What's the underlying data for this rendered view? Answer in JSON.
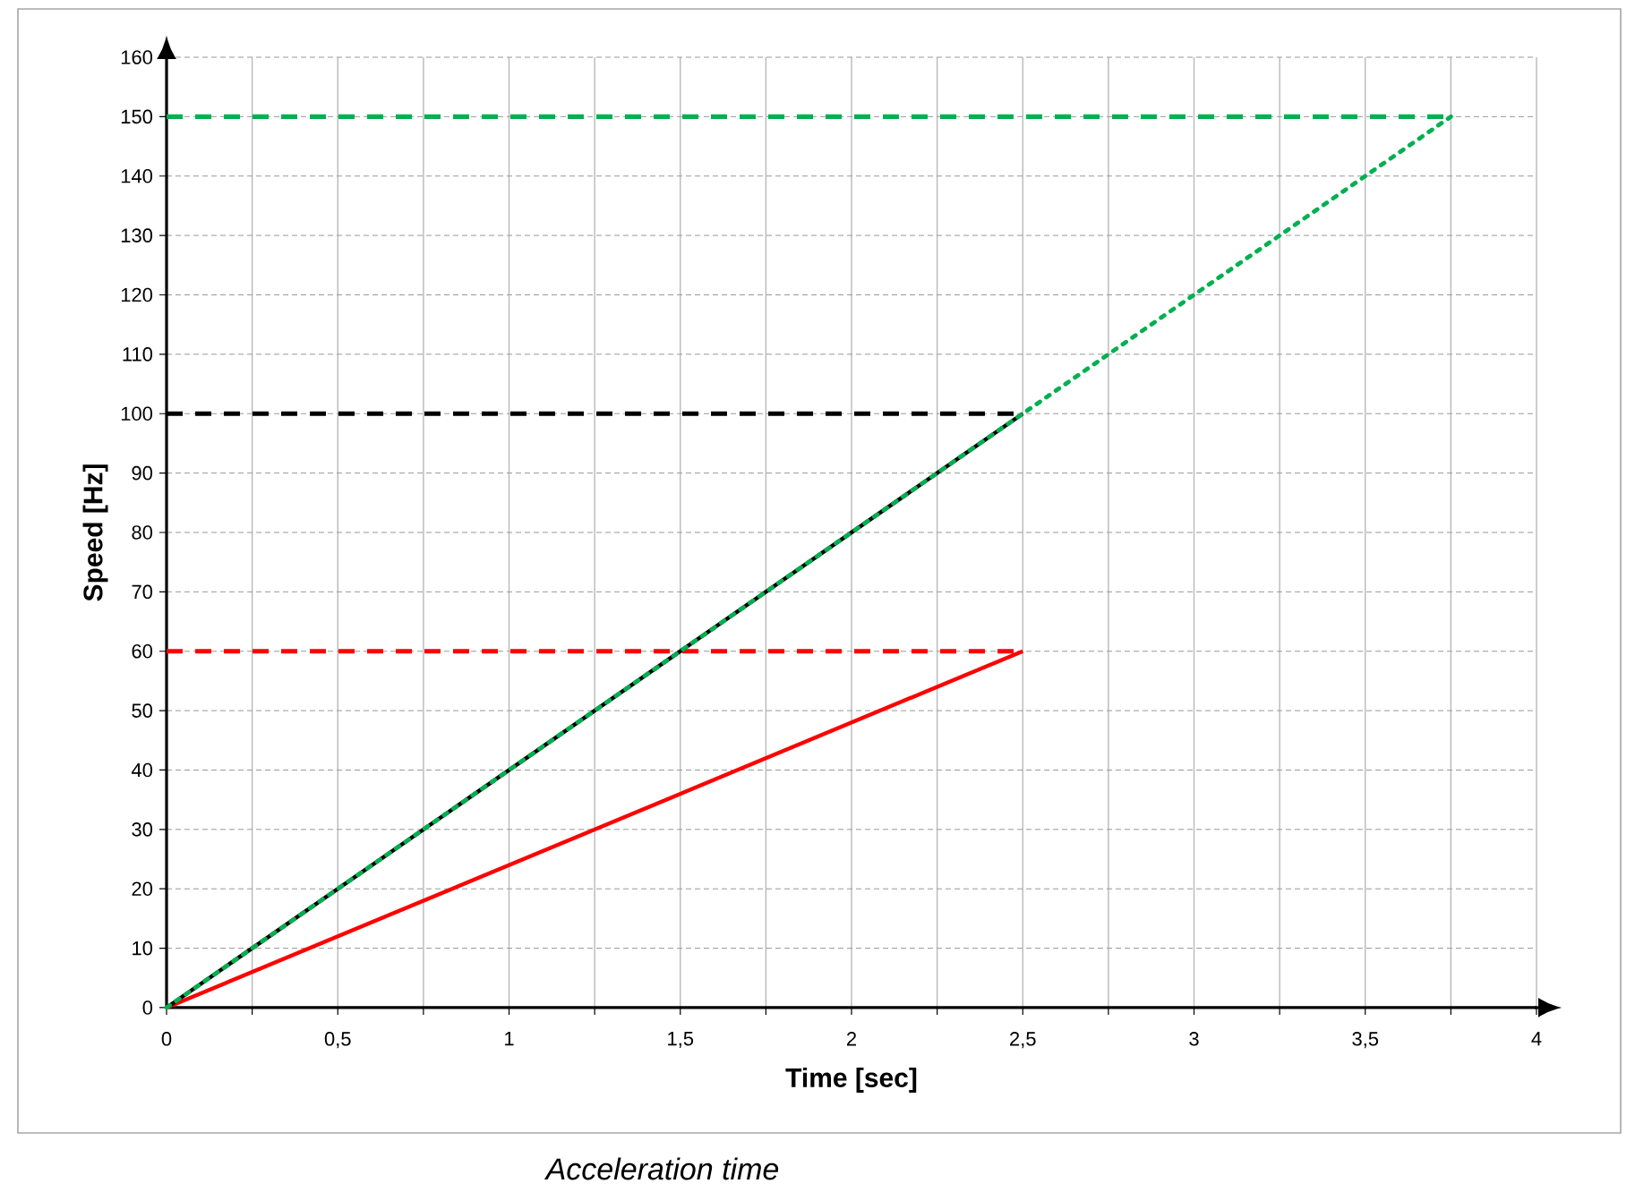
{
  "chart_data": {
    "type": "line",
    "xlabel": "Time [sec]",
    "ylabel": "Speed [Hz]",
    "annotations": [
      "Acceleration time"
    ],
    "series": [
      {
        "color": "#00b050",
        "line_style": "dashed",
        "x": [
          0,
          3.75
        ],
        "values": [
          150,
          150
        ]
      },
      {
        "color": "#000000",
        "line_style": "dashed",
        "x": [
          0,
          2.5
        ],
        "values": [
          100,
          100
        ]
      },
      {
        "color": "#ff0000",
        "line_style": "dashed",
        "x": [
          0,
          2.5
        ],
        "values": [
          60,
          60
        ]
      },
      {
        "color": "#ff0000",
        "line_style": "solid",
        "x": [
          0,
          2.5
        ],
        "values": [
          0,
          60
        ]
      },
      {
        "color": "#000000",
        "line_style": "solid",
        "x": [
          0,
          2.5
        ],
        "values": [
          0,
          100
        ]
      },
      {
        "color": "#00b050",
        "line_style": "dotted",
        "x": [
          0,
          3.75
        ],
        "values": [
          0,
          150
        ]
      }
    ],
    "xlim": [
      0,
      4
    ],
    "ylim": [
      0,
      160
    ],
    "xticks": [
      0,
      {
        "value": 0.25,
        "label": null
      },
      {
        "value": 0.5,
        "label": "0,5"
      },
      {
        "value": 0.75,
        "label": null
      },
      1,
      {
        "value": 1.25,
        "label": null
      },
      {
        "value": 1.5,
        "label": "1,5"
      },
      {
        "value": 1.75,
        "label": null
      },
      2,
      {
        "value": 2.25,
        "label": null
      },
      {
        "value": 2.5,
        "label": "2,5"
      },
      {
        "value": 2.75,
        "label": null
      },
      3,
      {
        "value": 3.25,
        "label": null
      },
      {
        "value": 3.5,
        "label": "3,5"
      },
      {
        "value": 3.75,
        "label": null
      },
      4
    ],
    "yticks": [
      0,
      10,
      20,
      30,
      40,
      50,
      60,
      70,
      80,
      90,
      100,
      110,
      120,
      130,
      140,
      150,
      160
    ],
    "grid": true,
    "marker": "none"
  }
}
